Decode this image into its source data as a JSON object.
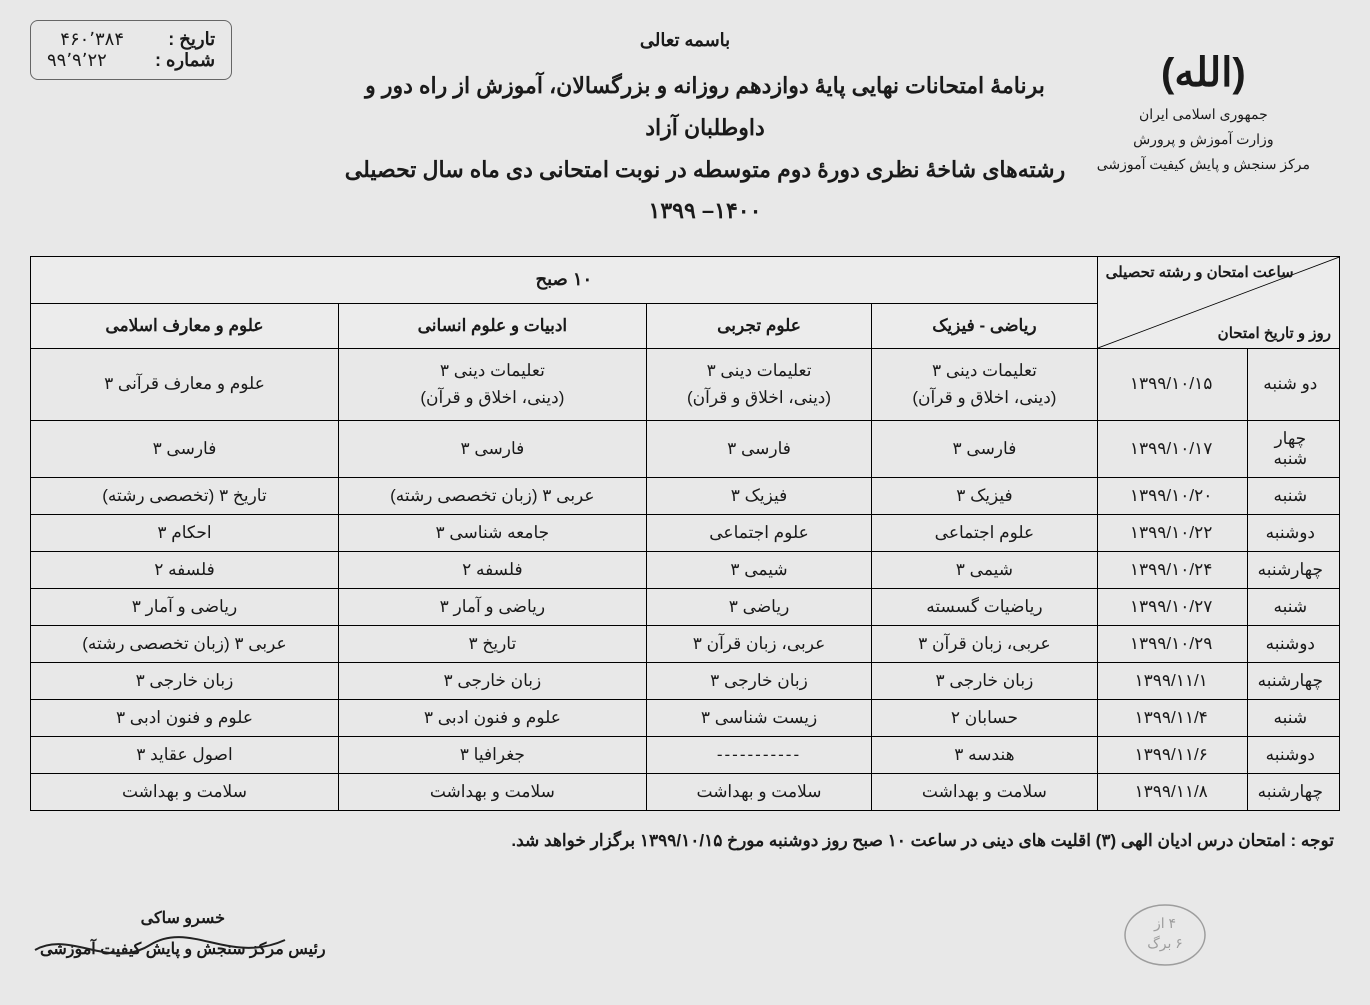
{
  "doc_info": {
    "date_label": "تاریخ :",
    "date_value": "۴۶۰٬۳۸۴",
    "number_label": "شماره :",
    "number_value": "۹۹٬۹٬۲۲"
  },
  "header": {
    "bismillah": "باسمه تعالی",
    "title_line1": "برنامهٔ امتحانات نهایی پایهٔ دوازدهم روزانه و بزرگسالان، آموزش از راه دور و داوطلبان آزاد",
    "title_line2": "رشته‌های شاخهٔ نظری دورهٔ دوم متوسطه در نوبت امتحانی دی ماه سال تحصیلی ۱۴۰۰– ۱۳۹۹"
  },
  "emblem": {
    "symbol": "(الله)",
    "line1": "جمهوری اسلامی ایران",
    "line2": "وزارت آموزش و پرورش",
    "line3": "مرکز سنجش و پایش کیفیت آموزشی"
  },
  "table": {
    "diag_top": "ساعت امتحان و رشته تحصیلی",
    "diag_bottom": "روز و تاریخ امتحان",
    "time_header": "۱۰ صبح",
    "majors": {
      "math": "ریاضی - فیزیک",
      "science": "علوم تجربی",
      "humanities": "ادبیات و علوم انسانی",
      "islamic": "علوم و معارف اسلامی"
    },
    "rows": [
      {
        "day": "دو شنبه",
        "date": "۱۳۹۹/۱۰/۱۵",
        "math": "تعلیمات دینی ۳\n(دینی، اخلاق و قرآن)",
        "science": "تعلیمات دینی ۳\n(دینی، اخلاق و قرآن)",
        "humanities": "تعلیمات دینی ۳\n(دینی، اخلاق و قرآن)",
        "islamic": "علوم و معارف قرآنی ۳"
      },
      {
        "day": "چهار شنبه",
        "date": "۱۳۹۹/۱۰/۱۷",
        "math": "فارسی ۳",
        "science": "فارسی ۳",
        "humanities": "فارسی ۳",
        "islamic": "فارسی ۳"
      },
      {
        "day": "شنبه",
        "date": "۱۳۹۹/۱۰/۲۰",
        "math": "فیزیک ۳",
        "science": "فیزیک ۳",
        "humanities": "عربی ۳ (زبان تخصصی رشته)",
        "islamic": "تاریخ ۳ (تخصصی رشته)"
      },
      {
        "day": "دوشنبه",
        "date": "۱۳۹۹/۱۰/۲۲",
        "math": "علوم اجتماعی",
        "science": "علوم اجتماعی",
        "humanities": "جامعه شناسی ۳",
        "islamic": "احکام ۳"
      },
      {
        "day": "چهارشنبه",
        "date": "۱۳۹۹/۱۰/۲۴",
        "math": "شیمی ۳",
        "science": "شیمی ۳",
        "humanities": "فلسفه ۲",
        "islamic": "فلسفه ۲"
      },
      {
        "day": "شنبه",
        "date": "۱۳۹۹/۱۰/۲۷",
        "math": "ریاضیات گسسته",
        "science": "ریاضی ۳",
        "humanities": "ریاضی و آمار ۳",
        "islamic": "ریاضی و آمار ۳"
      },
      {
        "day": "دوشنبه",
        "date": "۱۳۹۹/۱۰/۲۹",
        "math": "عربی، زبان قرآن ۳",
        "science": "عربی، زبان قرآن ۳",
        "humanities": "تاریخ ۳",
        "islamic": "عربی ۳ (زبان تخصصی رشته)"
      },
      {
        "day": "چهارشنبه",
        "date": "۱۳۹۹/۱۱/۱",
        "math": "زبان خارجی ۳",
        "science": "زبان خارجی ۳",
        "humanities": "زبان خارجی ۳",
        "islamic": "زبان خارجی ۳"
      },
      {
        "day": "شنبه",
        "date": "۱۳۹۹/۱۱/۴",
        "math": "حسابان ۲",
        "science": "زیست شناسی ۳",
        "humanities": "علوم و فنون ادبی ۳",
        "islamic": "علوم و فنون ادبی ۳"
      },
      {
        "day": "دوشنبه",
        "date": "۱۳۹۹/۱۱/۶",
        "math": "هندسه ۳",
        "science": "-----------",
        "humanities": "جغرافیا ۳",
        "islamic": "اصول عقاید ۳"
      },
      {
        "day": "چهارشنبه",
        "date": "۱۳۹۹/۱۱/۸",
        "math": "سلامت و بهداشت",
        "science": "سلامت و بهداشت",
        "humanities": "سلامت و بهداشت",
        "islamic": "سلامت و بهداشت"
      }
    ]
  },
  "footer_note": "توجه : امتحان درس ادیان الهی (۳) اقلیت های دینی در ساعت ۱۰ صبح روز دوشنبه مورخ ۱۳۹۹/۱۰/۱۵ برگزار خواهد شد.",
  "signature": {
    "name": "خسرو ساکی",
    "title": "رئیس مرکز سنجش و پایش کیفیت آموزشی"
  },
  "stamp_text": "۴ از\n۶ برگ"
}
